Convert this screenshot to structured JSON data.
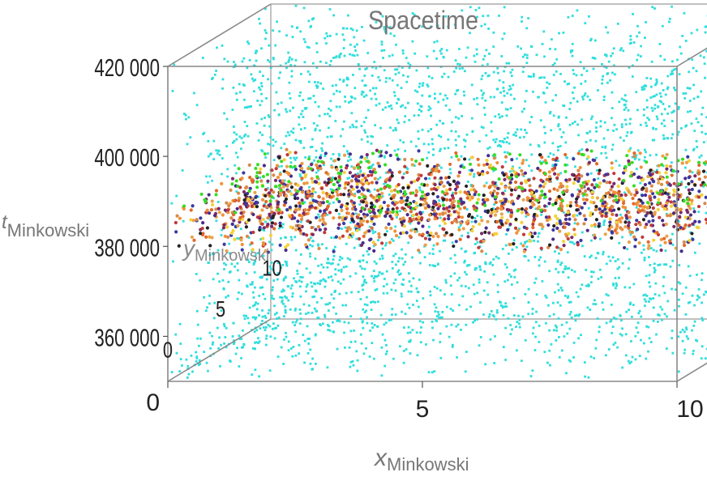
{
  "chart_data": {
    "type": "scatter",
    "projection": "3d-box",
    "title": "Spacetime",
    "axes": {
      "x": {
        "label_main": "x",
        "label_sub": "Minkowski",
        "range": [
          0,
          10
        ],
        "ticks": [
          "0",
          "5",
          "10"
        ]
      },
      "y": {
        "label_main": "y",
        "label_sub": "Minkowski",
        "range": [
          0,
          10
        ],
        "ticks": [
          "0",
          "5",
          "10"
        ]
      },
      "t": {
        "label_main": "t",
        "label_sub": "Minkowski",
        "range": [
          350000,
          420000
        ],
        "ticks": [
          "360 000",
          "380 000",
          "400 000",
          "420 000"
        ]
      }
    },
    "series": [
      {
        "role": "lattice",
        "color": "#2fdedc",
        "count": 3200
      },
      {
        "role": "band",
        "t_range": [
          378000,
          388000
        ],
        "colors": [
          "#f0923a",
          "#e8a34a",
          "#222222",
          "#3a3aa0",
          "#7a2a6a",
          "#c03a3a",
          "#f2d23a",
          "#e06a2a",
          "#4a2a8a",
          "#d88a4a"
        ],
        "count": 1900
      },
      {
        "role": "band-top",
        "t": 387500,
        "color": "#33dd22",
        "count": 160
      }
    ],
    "grid": false,
    "legend": "none"
  }
}
